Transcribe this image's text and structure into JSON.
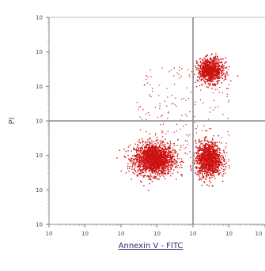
{
  "chart_data": {
    "type": "scatter",
    "xlabel": "Annexin V - FITC",
    "ylabel": "PI",
    "x_scale": "log",
    "y_scale": "log",
    "x_ticks": [
      "10",
      "10",
      "10",
      "10",
      "10",
      "10",
      "10"
    ],
    "y_ticks": [
      "10",
      "10",
      "10",
      "10",
      "10",
      "10",
      "10"
    ],
    "x_tick_values": [
      0.01,
      0.1,
      1,
      10,
      100,
      1000,
      10000
    ],
    "y_tick_values": [
      0.01,
      0.1,
      1,
      10,
      100,
      1000,
      10000
    ],
    "xlim": [
      0.01,
      10000
    ],
    "ylim": [
      0.01,
      10000
    ],
    "grid": false,
    "quadrant_gate": {
      "x": 100,
      "y": 10
    },
    "point_color": "#cc1111",
    "populations": [
      {
        "center": [
          8,
          0.8
        ],
        "spread": [
          0.55,
          0.45
        ],
        "count": 1800
      },
      {
        "center": [
          260,
          0.8
        ],
        "spread": [
          0.35,
          0.5
        ],
        "count": 1200
      },
      {
        "center": [
          300,
          300
        ],
        "spread": [
          0.35,
          0.35
        ],
        "count": 900
      }
    ]
  }
}
